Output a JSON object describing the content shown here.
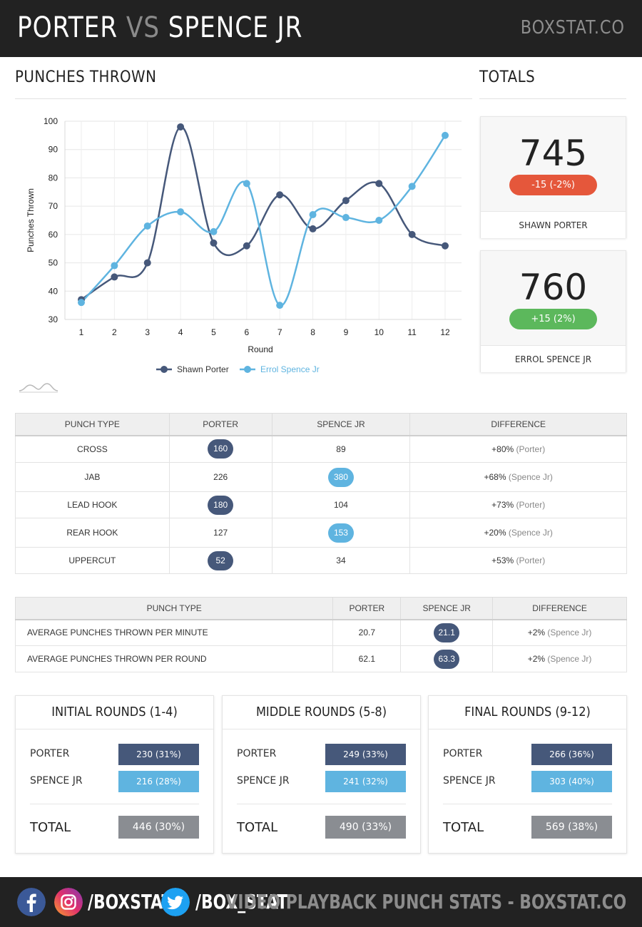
{
  "header": {
    "fighter_a": "PORTER",
    "vs": "VS",
    "fighter_b": "SPENCE JR",
    "site": "BOXSTAT.CO"
  },
  "sections": {
    "punches_thrown": "PUNCHES THROWN",
    "totals": "TOTALS"
  },
  "colors": {
    "porter": "#46587a",
    "spence": "#5fb4e0",
    "negative": "#e5573b",
    "positive": "#5cb85c",
    "total_gray": "#8a8d92"
  },
  "chart_data": {
    "type": "line",
    "xlabel": "Round",
    "ylabel": "Punches Thrown",
    "ylim": [
      30,
      100
    ],
    "yticks": [
      30,
      40,
      50,
      60,
      70,
      80,
      90,
      100
    ],
    "x": [
      1,
      2,
      3,
      4,
      5,
      6,
      7,
      8,
      9,
      10,
      11,
      12
    ],
    "series": [
      {
        "name": "Shawn Porter",
        "color": "#46587a",
        "values": [
          37,
          45,
          50,
          98,
          57,
          56,
          74,
          62,
          72,
          78,
          60,
          56
        ]
      },
      {
        "name": "Errol Spence Jr",
        "color": "#5fb4e0",
        "values": [
          36,
          49,
          63,
          68,
          61,
          78,
          35,
          67,
          66,
          65,
          77,
          95
        ]
      }
    ],
    "legend_position": "bottom",
    "smooth": true
  },
  "totals": [
    {
      "value": "745",
      "change": "-15 (-2%)",
      "name": "SHAWN PORTER",
      "trend": "negative"
    },
    {
      "value": "760",
      "change": "+15 (2%)",
      "name": "ERROL SPENCE JR",
      "trend": "positive"
    }
  ],
  "punch_table": {
    "headers": [
      "PUNCH TYPE",
      "PORTER",
      "SPENCE JR",
      "DIFFERENCE"
    ],
    "rows": [
      {
        "type": "CROSS",
        "porter": "160",
        "spence": "89",
        "diff": "+80%",
        "who": "(Porter)",
        "winner": "porter"
      },
      {
        "type": "JAB",
        "porter": "226",
        "spence": "380",
        "diff": "+68%",
        "who": "(Spence Jr)",
        "winner": "spence"
      },
      {
        "type": "LEAD HOOK",
        "porter": "180",
        "spence": "104",
        "diff": "+73%",
        "who": "(Porter)",
        "winner": "porter"
      },
      {
        "type": "REAR HOOK",
        "porter": "127",
        "spence": "153",
        "diff": "+20%",
        "who": "(Spence Jr)",
        "winner": "spence"
      },
      {
        "type": "UPPERCUT",
        "porter": "52",
        "spence": "34",
        "diff": "+53%",
        "who": "(Porter)",
        "winner": "porter"
      }
    ]
  },
  "avg_table": {
    "headers": [
      "PUNCH TYPE",
      "PORTER",
      "SPENCE JR",
      "DIFFERENCE"
    ],
    "rows": [
      {
        "type": "AVERAGE PUNCHES THROWN PER MINUTE",
        "porter": "20.7",
        "spence": "21.1",
        "diff": "+2%",
        "who": "(Spence Jr)",
        "winner": "spence"
      },
      {
        "type": "AVERAGE PUNCHES THROWN PER ROUND",
        "porter": "62.1",
        "spence": "63.3",
        "diff": "+2%",
        "who": "(Spence Jr)",
        "winner": "spence"
      }
    ]
  },
  "rounds": [
    {
      "title": "INITIAL ROUNDS (1-4)",
      "porter_label": "PORTER",
      "porter": "230 (31%)",
      "spence_label": "SPENCE JR",
      "spence": "216 (28%)",
      "total_label": "TOTAL",
      "total": "446 (30%)"
    },
    {
      "title": "MIDDLE ROUNDS (5-8)",
      "porter_label": "PORTER",
      "porter": "249 (33%)",
      "spence_label": "SPENCE JR",
      "spence": "241 (32%)",
      "total_label": "TOTAL",
      "total": "490 (33%)"
    },
    {
      "title": "FINAL ROUNDS (9-12)",
      "porter_label": "PORTER",
      "porter": "266 (36%)",
      "spence_label": "SPENCE JR",
      "spence": "303 (40%)",
      "total_label": "TOTAL",
      "total": "569 (38%)"
    }
  ],
  "footer": {
    "handle_facebook_instagram": "/BOXSTAT",
    "handle_twitter": "/BOX_STAT",
    "tagline": "VIDEO PLAYBACK PUNCH STATS - BOXSTAT.CO",
    "icons": [
      "facebook-icon",
      "instagram-icon",
      "twitter-icon"
    ]
  }
}
